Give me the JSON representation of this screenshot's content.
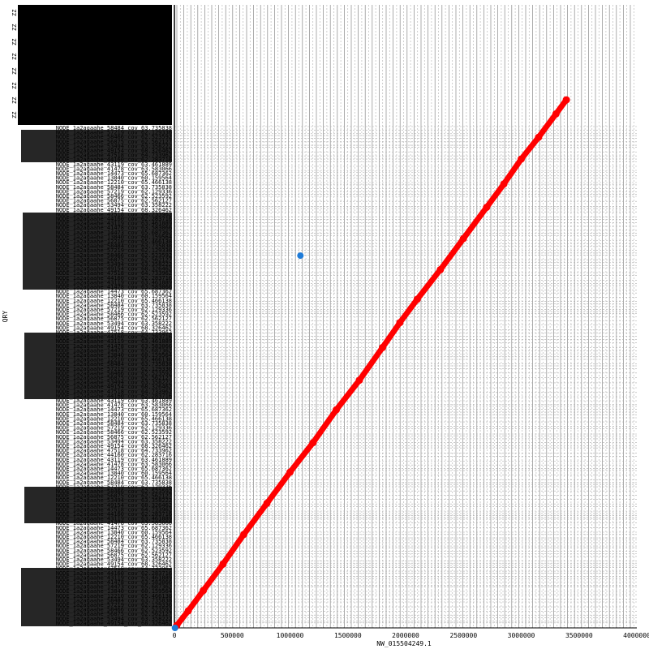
{
  "chart_data": {
    "type": "scatter",
    "title": "",
    "xlabel": "NW_015504249.1",
    "ylabel": "QRY",
    "xlim": [
      0,
      4000000
    ],
    "x_ticks": [
      0,
      500000,
      1000000,
      1500000,
      2000000,
      2500000,
      3000000,
      3500000,
      4000000
    ],
    "x_tick_labels": [
      "0",
      "500000",
      "1000000",
      "1500000",
      "2000000",
      "2500000",
      "3000000",
      "3500000",
      "4000000"
    ],
    "reference_length": 3390000,
    "grid": true,
    "legend": "none",
    "y_sequence_labels": [
      "NODE_1a2agaahe_58484_cov_63.735838",
      "NODE_1a2agaahe_57219_cov_62.129336",
      "NODE_1a2agaahe_58466_cov_62.523592",
      "NODE_1a2agaahe_56875_cov_62.562127",
      "NODE_1a2agaahe_53494_cov_63.358222",
      "NODE_1a2agaahe_49154_cov_68.326462",
      "NODE_1a2agaahe_47518_cov_64.733962",
      "NODE_1a2agaahe_44160_cov_62.283716",
      "NODE_1a2agaahe_43119_cov_63.461889",
      "NODE_1a2agaahe_41478_cov_63.583066",
      "NODE_1a2agaahe_14473_cov_65.687362",
      "NODE_1a2agaahe_13840_cov_60.159564",
      "NODE_1a2agaahe_12210_cov_65.466138"
    ],
    "series": [
      {
        "name": "",
        "color": "#ff0000",
        "points": [
          [
            20000,
            15000
          ],
          [
            120000,
            110000
          ],
          [
            250000,
            240000
          ],
          [
            420000,
            410000
          ],
          [
            600000,
            600000
          ],
          [
            800000,
            800000
          ],
          [
            1000000,
            1000000
          ],
          [
            1200000,
            1190000
          ],
          [
            1400000,
            1400000
          ],
          [
            1600000,
            1590000
          ],
          [
            1800000,
            1800000
          ],
          [
            1950000,
            1960000
          ],
          [
            2100000,
            2110000
          ],
          [
            2300000,
            2300000
          ],
          [
            2500000,
            2500000
          ],
          [
            2700000,
            2700000
          ],
          [
            2850000,
            2850000
          ],
          [
            3000000,
            3010000
          ],
          [
            3150000,
            3150000
          ],
          [
            3300000,
            3300000
          ],
          [
            3390000,
            3390000
          ]
        ]
      },
      {
        "name": "",
        "color": "#1e7bd8",
        "points": [
          [
            1090000,
            2390000
          ],
          [
            5000,
            0
          ]
        ]
      }
    ]
  }
}
